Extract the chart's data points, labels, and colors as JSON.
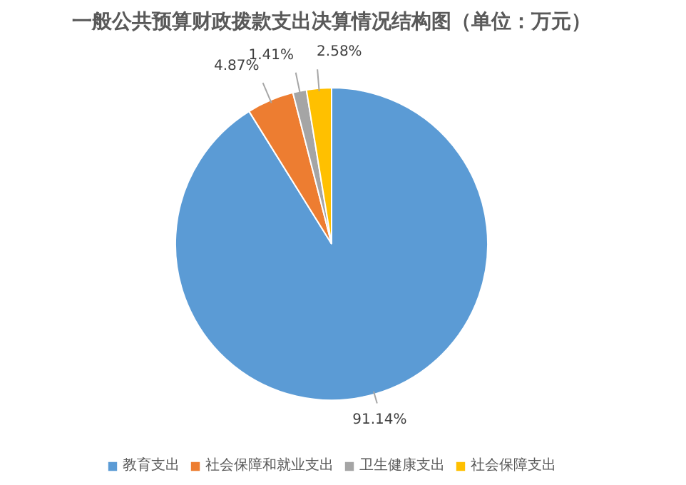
{
  "chart_data": {
    "type": "pie",
    "title": "一般公共预算财政拨款支出决算情况结构图（单位：万元）",
    "categories": [
      "教育支出",
      "社会保障和就业支出",
      "卫生健康支出",
      "社会保障支出"
    ],
    "values": [
      91.14,
      4.87,
      1.41,
      2.58
    ],
    "colors": [
      "#5b9bd5",
      "#ed7d31",
      "#a5a5a5",
      "#ffc000"
    ],
    "value_labels": [
      "91.14%",
      "4.87%",
      "1.41%",
      "2.58%"
    ],
    "legend": "bottom"
  }
}
